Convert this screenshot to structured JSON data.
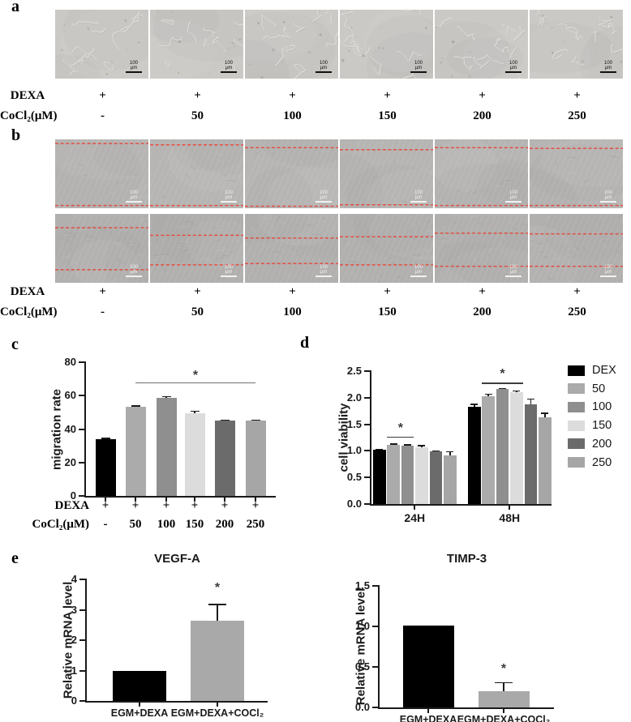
{
  "figure": {
    "panels": {
      "a": {
        "label": "a",
        "scale_bar_text": "100 μm",
        "condition_rows": [
          {
            "label": "DEXA",
            "values": [
              "+",
              "+",
              "+",
              "+",
              "+",
              "+"
            ]
          },
          {
            "label": "CoCl₂(μM)",
            "values": [
              "-",
              "50",
              "100",
              "150",
              "200",
              "250"
            ]
          }
        ]
      },
      "b": {
        "label": "b",
        "scale_bar_text": "100 μm",
        "wound_edge_color": "#e8463a",
        "row1_line_fractions": [
          [
            0.06,
            0.96
          ],
          [
            0.08,
            0.96
          ],
          [
            0.12,
            0.97
          ],
          [
            0.15,
            0.95
          ],
          [
            0.12,
            0.96
          ],
          [
            0.13,
            0.96
          ]
        ],
        "row2_line_fractions": [
          [
            0.2,
            0.81
          ],
          [
            0.31,
            0.74
          ],
          [
            0.35,
            0.72
          ],
          [
            0.33,
            0.74
          ],
          [
            0.28,
            0.76
          ],
          [
            0.29,
            0.76
          ]
        ],
        "condition_rows": [
          {
            "label": "DEXA",
            "values": [
              "+",
              "+",
              "+",
              "+",
              "+",
              "+"
            ]
          },
          {
            "label": "CoCl₂(μM)",
            "values": [
              "-",
              "50",
              "100",
              "150",
              "200",
              "250"
            ]
          }
        ]
      },
      "c": {
        "label": "c"
      },
      "d": {
        "label": "d"
      },
      "e": {
        "label": "e"
      }
    }
  },
  "chart_data": [
    {
      "id": "c",
      "type": "bar",
      "title": "",
      "ylabel": "migration rate",
      "ylim": [
        0,
        80
      ],
      "yticks": [
        "0",
        "20",
        "40",
        "60",
        "80"
      ],
      "categories": [
        "-",
        "50",
        "100",
        "150",
        "200",
        "250"
      ],
      "values": [
        34,
        53.2,
        58.5,
        49.5,
        45,
        45
      ],
      "errors": [
        0.6,
        0.8,
        0.9,
        1.3,
        0.5,
        0.5
      ],
      "bar_colors": [
        "#000000",
        "#ababab",
        "#8f8f8f",
        "#dcdcdc",
        "#6b6b6b",
        "#a6a6a6"
      ],
      "significance": [
        {
          "from": 1,
          "to": 5,
          "y": 68,
          "label": "*"
        }
      ],
      "x_annotation_rows": [
        {
          "label": "DEXA",
          "values": [
            "+",
            "+",
            "+",
            "+",
            "+",
            "+"
          ]
        },
        {
          "label": "CoCl₂(μM)",
          "values": [
            "-",
            "50",
            "100",
            "150",
            "200",
            "250"
          ]
        }
      ]
    },
    {
      "id": "d",
      "type": "grouped_bar",
      "title": "",
      "ylabel": "cell viability",
      "ylim": [
        0,
        2.5
      ],
      "yticks": [
        "0.0",
        "0.5",
        "1.0",
        "1.5",
        "2.0",
        "2.5"
      ],
      "groups": [
        "24H",
        "48H"
      ],
      "series": [
        {
          "name": "DEX",
          "color": "#000000",
          "values": [
            1.02,
            1.83
          ],
          "errors": [
            0.01,
            0.05
          ]
        },
        {
          "name": "50",
          "color": "#ababab",
          "values": [
            1.11,
            2.03
          ],
          "errors": [
            0.02,
            0.04
          ]
        },
        {
          "name": "100",
          "color": "#8f8f8f",
          "values": [
            1.1,
            2.16
          ],
          "errors": [
            0.02,
            0.015
          ]
        },
        {
          "name": "150",
          "color": "#dcdcdc",
          "values": [
            1.06,
            2.11
          ],
          "errors": [
            0.04,
            0.02
          ]
        },
        {
          "name": "200",
          "color": "#6b6b6b",
          "values": [
            0.99,
            1.88
          ],
          "errors": [
            0.01,
            0.1
          ]
        },
        {
          "name": "250",
          "color": "#a6a6a6",
          "values": [
            0.91,
            1.63
          ],
          "errors": [
            0.08,
            0.08
          ]
        }
      ],
      "legend_position": "right",
      "significance": [
        {
          "group": 0,
          "from": 1,
          "to": 2,
          "y": 1.27,
          "label": "*"
        },
        {
          "group": 1,
          "from": 1,
          "to": 3,
          "y": 2.29,
          "label": "*"
        }
      ]
    },
    {
      "id": "vegfa",
      "type": "bar",
      "title": "VEGF-A",
      "ylabel": "Relative mRNA level",
      "ylim": [
        0,
        4
      ],
      "yticks": [
        "0",
        "1",
        "2",
        "3",
        "4"
      ],
      "categories": [
        "EGM+DEXA",
        "EGM+DEXA+COCl₂"
      ],
      "values": [
        1.0,
        2.63
      ],
      "errors": [
        0,
        0.55
      ],
      "bar_colors": [
        "#000000",
        "#a9a9a9"
      ],
      "significance": [
        {
          "bar": 1,
          "y": 3.72,
          "label": "*"
        }
      ]
    },
    {
      "id": "timp3",
      "type": "bar",
      "title": "TIMP-3",
      "ylabel": "Relative mRNA level",
      "ylim": [
        0,
        1.5
      ],
      "yticks": [
        "0.0",
        "0.5",
        "1.0",
        "1.5"
      ],
      "categories": [
        "EGM+DEXA",
        "EGM+DEXA+COCl₂"
      ],
      "values": [
        1.01,
        0.2
      ],
      "errors": [
        0,
        0.11
      ],
      "bar_colors": [
        "#000000",
        "#a9a9a9"
      ],
      "significance": [
        {
          "bar": 1,
          "y": 0.47,
          "label": "*"
        }
      ]
    }
  ]
}
